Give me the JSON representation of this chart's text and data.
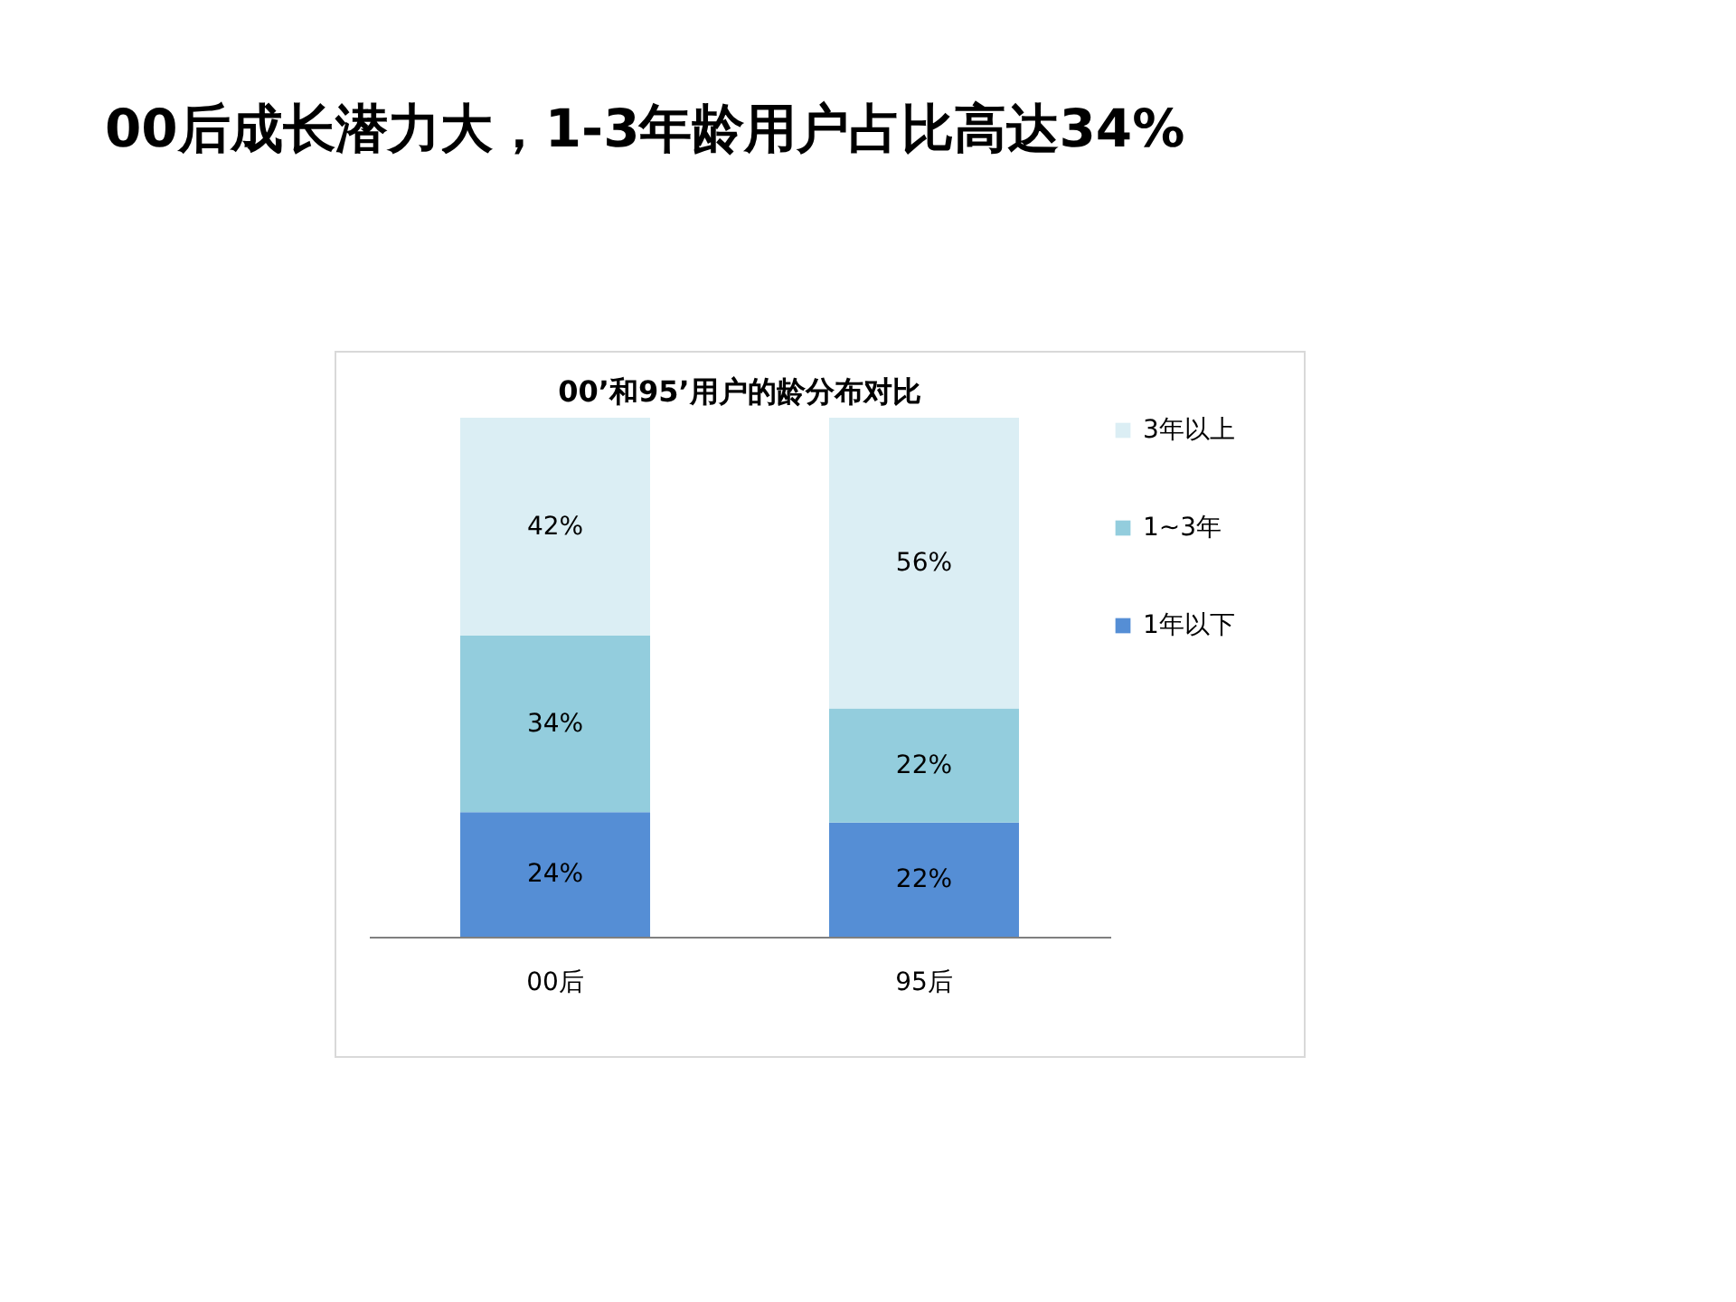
{
  "chart_data": {
    "type": "bar",
    "title": "00后成长潜力大，1-3年龄用户占比高达34%",
    "subtitle": "00’和95’用户的龄分布对比",
    "categories": [
      "00后",
      "95后"
    ],
    "stacked": true,
    "legend": "right",
    "series": [
      {
        "name": "1年以下",
        "color": "#558ed5",
        "values": [
          24,
          22
        ],
        "value_labels": [
          "24%",
          "22%"
        ]
      },
      {
        "name": "1~3年",
        "color": "#93cddd",
        "values": [
          34,
          22
        ],
        "value_labels": [
          "34%",
          "22%"
        ]
      },
      {
        "name": "3年以上",
        "color": "#dbeef4",
        "values": [
          42,
          56
        ],
        "value_labels": [
          "42%",
          "56%"
        ]
      }
    ]
  }
}
